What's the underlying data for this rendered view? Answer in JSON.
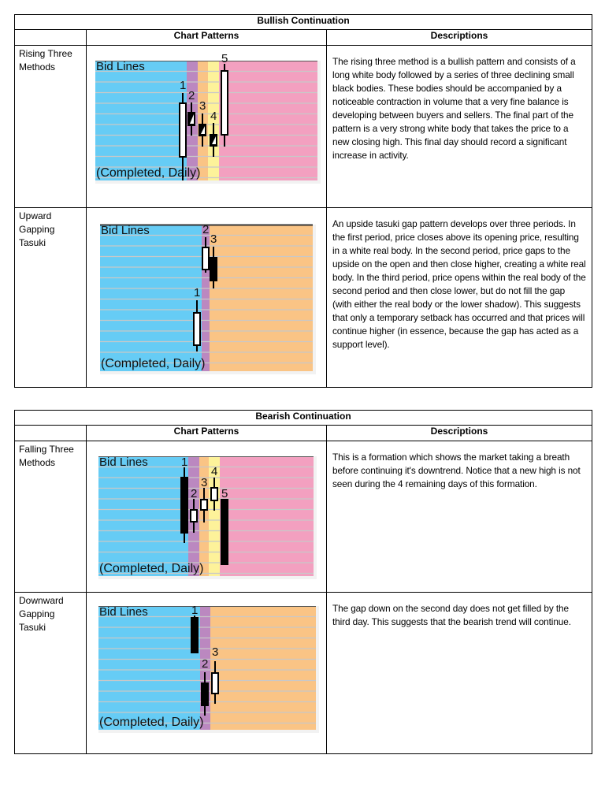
{
  "tables": [
    {
      "title": "Bullish  Continuation",
      "headers": [
        "",
        "Chart Patterns",
        "Descriptions"
      ],
      "rows": [
        {
          "name": "Rising Three\nMethods",
          "description": "The rising three method is a bullish pattern and consists of a long white body followed by a series of three declining small black bodies. These bodies should be accompanied by a noticeable contraction in volume that a very fine balance is developing between buyers and sellers. The final part of the pattern is a very strong white body that takes the price to a new closing high. This final day should record a significant increase in activity.",
          "chart": {
            "top_label": "Bid Lines",
            "bottom_label": "(Completed, Daily)",
            "bands": [
              "#66ccf5",
              "#bb88c0",
              "#fac485",
              "#fdf29a",
              "#f3a0c0"
            ],
            "candles": [
              {
                "label": "1",
                "color": "white"
              },
              {
                "label": "2",
                "color": "black"
              },
              {
                "label": "3",
                "color": "black"
              },
              {
                "label": "4",
                "color": "black"
              },
              {
                "label": "5",
                "color": "white"
              }
            ]
          }
        },
        {
          "name": "Upward\nGapping\nTasuki",
          "description": "An upside tasuki gap pattern develops over three periods. In the first period, price closes above its opening price, resulting in a white real body. In the second period, price gaps to the upside on the open and then close higher, creating a white real body. In the third period, price opens within the real body of the second period and then close lower, but do not fill the gap (with either the real body or the lower shadow). This suggests that only a temporary setback has occurred and that prices will continue higher (in essence, because the gap has acted as a support level).",
          "chart": {
            "top_label": "Bid Lines",
            "bottom_label": "(Completed, Daily)",
            "bands": [
              "#66ccf5",
              "#bb88c0",
              "#fac485"
            ],
            "candles": [
              {
                "label": "1",
                "color": "white"
              },
              {
                "label": "2",
                "color": "white"
              },
              {
                "label": "3",
                "color": "black"
              }
            ]
          }
        }
      ]
    },
    {
      "title": "Bearish Continuation",
      "headers": [
        "",
        "Chart Patterns",
        "Descriptions"
      ],
      "rows": [
        {
          "name": "Falling Three\nMethods",
          "description": "This is a formation which shows the market taking a breath before continuing it's downtrend. Notice that a new high is not seen during the 4 remaining days of this formation.",
          "chart": {
            "top_label": "Bid Lines",
            "bottom_label": "(Completed, Daily)",
            "bands": [
              "#66ccf5",
              "#bb88c0",
              "#fac485",
              "#fdf29a",
              "#f3a0c0"
            ],
            "candles": [
              {
                "label": "1",
                "color": "black"
              },
              {
                "label": "2",
                "color": "white"
              },
              {
                "label": "3",
                "color": "white"
              },
              {
                "label": "4",
                "color": "white"
              },
              {
                "label": "5",
                "color": "black"
              }
            ]
          }
        },
        {
          "name": "Downward\nGapping\nTasuki",
          "description": "The gap down on the second day does not get filled by the third day. This suggests that the bearish trend will continue.",
          "chart": {
            "top_label": "Bid Lines",
            "bottom_label": "(Completed, Daily)",
            "bands": [
              "#66ccf5",
              "#bb88c0",
              "#fac485"
            ],
            "candles": [
              {
                "label": "1",
                "color": "black"
              },
              {
                "label": "2",
                "color": "black"
              },
              {
                "label": "3",
                "color": "white"
              }
            ]
          }
        }
      ]
    }
  ]
}
